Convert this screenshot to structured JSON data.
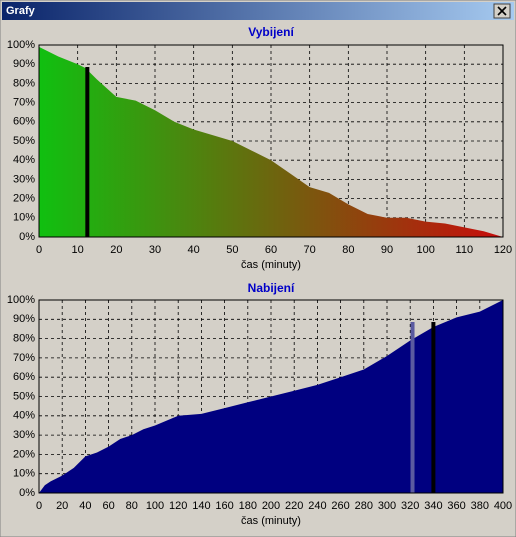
{
  "window_title": "Grafy",
  "chart_data": [
    {
      "type": "area",
      "title": "Vybijení",
      "x_label": "čas (minuty)",
      "x": [
        0,
        5,
        10,
        12,
        15,
        20,
        25,
        30,
        35,
        40,
        45,
        50,
        55,
        60,
        65,
        70,
        75,
        80,
        85,
        90,
        95,
        100,
        105,
        110,
        115,
        120
      ],
      "values": [
        99,
        94,
        90,
        88,
        82,
        73,
        71,
        66,
        60,
        56,
        53,
        50,
        45,
        40,
        33,
        26,
        23,
        17,
        12,
        10,
        10,
        8,
        7,
        5,
        3,
        0
      ],
      "gradient": [
        "#10c010",
        "#c80c0c"
      ],
      "markers": [
        {
          "x": 12.5,
          "color": "#000000"
        }
      ],
      "xlim": [
        0,
        120
      ],
      "xticks": [
        0,
        10,
        20,
        30,
        40,
        50,
        60,
        70,
        80,
        90,
        100,
        110,
        120
      ],
      "ylim": [
        0,
        100
      ],
      "yticks": [
        {
          "value": 0,
          "label": "0%"
        },
        {
          "value": 10,
          "label": "10%"
        },
        {
          "value": 20,
          "label": "20%"
        },
        {
          "value": 30,
          "label": "30%"
        },
        {
          "value": 40,
          "label": "40%"
        },
        {
          "value": 50,
          "label": "50%"
        },
        {
          "value": 60,
          "label": "60%"
        },
        {
          "value": 70,
          "label": "70%"
        },
        {
          "value": 80,
          "label": "80%"
        },
        {
          "value": 90,
          "label": "90%"
        },
        {
          "value": 100,
          "label": "100%"
        }
      ],
      "grid": true
    },
    {
      "type": "area",
      "title": "Nabijení",
      "x_label": "čas (minuty)",
      "x": [
        0,
        5,
        10,
        20,
        30,
        40,
        50,
        60,
        70,
        80,
        90,
        100,
        120,
        140,
        160,
        180,
        200,
        220,
        240,
        260,
        280,
        300,
        320,
        340,
        360,
        380,
        400
      ],
      "values": [
        0,
        4,
        6,
        9,
        13,
        19,
        21,
        24,
        28,
        30,
        33,
        35,
        40,
        41,
        44,
        47,
        50,
        53,
        56,
        60,
        64,
        71,
        79,
        86,
        91,
        94,
        100
      ],
      "color": "#000080",
      "markers": [
        {
          "x": 322,
          "color": "#5a5aa0"
        },
        {
          "x": 340,
          "color": "#000000"
        }
      ],
      "xlim": [
        0,
        400
      ],
      "xticks": [
        0,
        20,
        40,
        60,
        80,
        100,
        120,
        140,
        160,
        180,
        200,
        220,
        240,
        260,
        280,
        300,
        320,
        340,
        360,
        380,
        400
      ],
      "ylim": [
        0,
        100
      ],
      "yticks": [
        {
          "value": 0,
          "label": "0%"
        },
        {
          "value": 10,
          "label": "10%"
        },
        {
          "value": 20,
          "label": "20%"
        },
        {
          "value": 30,
          "label": "30%"
        },
        {
          "value": 40,
          "label": "40%"
        },
        {
          "value": 50,
          "label": "50%"
        },
        {
          "value": 60,
          "label": "60%"
        },
        {
          "value": 70,
          "label": "70%"
        },
        {
          "value": 80,
          "label": "80%"
        },
        {
          "value": 90,
          "label": "90%"
        },
        {
          "value": 100,
          "label": "100%"
        }
      ],
      "grid": true
    }
  ]
}
